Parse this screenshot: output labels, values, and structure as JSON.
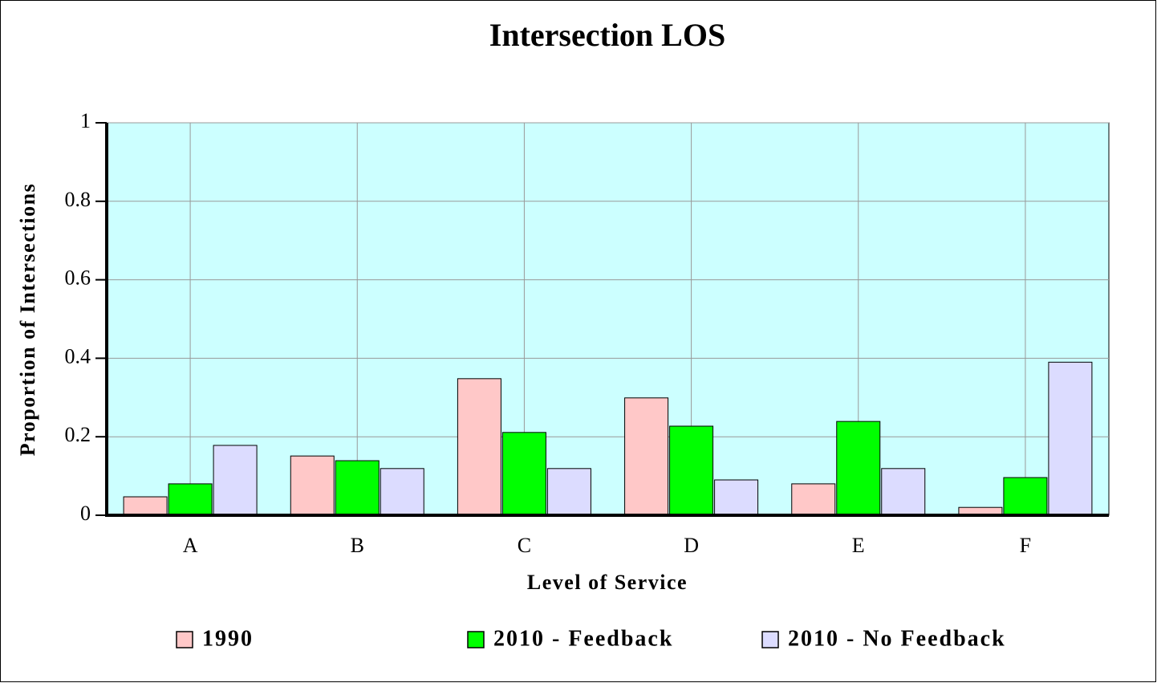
{
  "chart_data": {
    "type": "bar",
    "title": "Intersection LOS",
    "x_label": "Level of Service",
    "y_label": "Proportion of Intersections",
    "categories": [
      "A",
      "B",
      "C",
      "D",
      "E",
      "F"
    ],
    "series": [
      {
        "name": "1990",
        "color": "#ffc8c8",
        "values": [
          0.047,
          0.151,
          0.348,
          0.299,
          0.08,
          0.02
        ]
      },
      {
        "name": "2010 - Feedback",
        "color": "#00ff00",
        "values": [
          0.08,
          0.139,
          0.211,
          0.227,
          0.239,
          0.096
        ]
      },
      {
        "name": "2010 - No Feedback",
        "color": "#dcdcff",
        "values": [
          0.178,
          0.119,
          0.119,
          0.09,
          0.119,
          0.39
        ]
      }
    ],
    "ylim": [
      0,
      1
    ],
    "yticks": [
      0,
      0.2,
      0.4,
      0.6,
      0.8,
      1
    ],
    "grid": true,
    "plot_background": "#ccffff",
    "legend": "bottom"
  }
}
